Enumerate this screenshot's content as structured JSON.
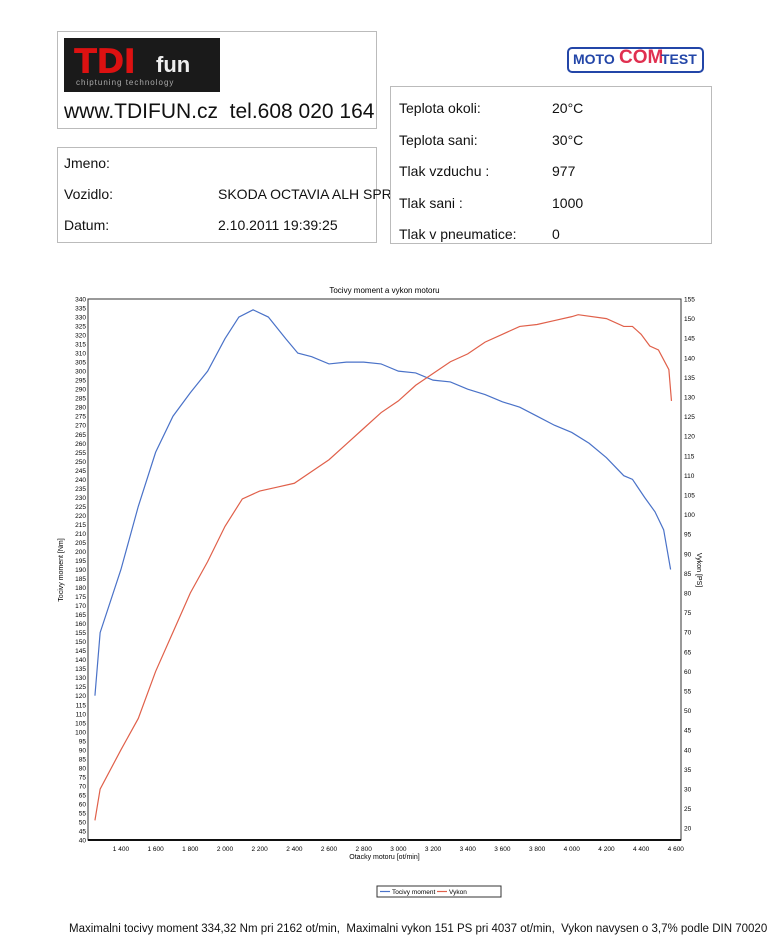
{
  "header": {
    "logo_text": "TDIfun",
    "logo_sub": "chiptuning technology",
    "contact": "www.TDIFUN.cz  tel.608 020 164",
    "moto_logo": [
      "MOTO",
      "COM",
      "TEST"
    ]
  },
  "info": {
    "jmeno_label": "Jmeno:",
    "jmeno_value": "",
    "vozidlo_label": "Vozidlo:",
    "vozidlo_value": "SKODA OCTAVIA ALH SPRIN",
    "datum_label": "Datum:",
    "datum_value": "2.10.2011 19:39:25"
  },
  "conditions": [
    {
      "label": "Teplota okoli:",
      "value": "20°C"
    },
    {
      "label": "Teplota sani:",
      "value": "30°C"
    },
    {
      "label": "Tlak vzduchu :",
      "value": "977"
    },
    {
      "label": "Tlak sani :",
      "value": "1000"
    },
    {
      "label": "Tlak v pneumatice:",
      "value": "0"
    }
  ],
  "chart_data": {
    "type": "line",
    "title": "Tocivy moment a vykon motoru",
    "xlabel": "Otacky motoru [ot/min]",
    "ylabel": "Tocivy moment [Nm]",
    "y2label": "Vykon [PS]",
    "xlim": [
      1210,
      4630
    ],
    "ylim": [
      40,
      340
    ],
    "y2lim": [
      17,
      155
    ],
    "xticks": [
      1400,
      1600,
      1800,
      2000,
      2200,
      2400,
      2600,
      2800,
      3000,
      3200,
      3400,
      3600,
      3800,
      4000,
      4200,
      4400,
      4600
    ],
    "xtick_labels": [
      "1 400",
      "1 600",
      "1 800",
      "2 000",
      "2 200",
      "2 400",
      "2 600",
      "2 800",
      "3 000",
      "3 200",
      "3 400",
      "3 600",
      "3 800",
      "4 000",
      "4 200",
      "4 400",
      "4 600"
    ],
    "legend": "bottom",
    "grid": false,
    "series": [
      {
        "name": "Tocivy moment",
        "axis": "left",
        "color": "#4a72c8",
        "x": [
          1250,
          1280,
          1400,
          1500,
          1600,
          1700,
          1800,
          1900,
          2000,
          2080,
          2162,
          2250,
          2350,
          2420,
          2500,
          2600,
          2700,
          2800,
          2900,
          3000,
          3100,
          3200,
          3300,
          3400,
          3500,
          3600,
          3700,
          3800,
          3900,
          4000,
          4100,
          4200,
          4300,
          4350,
          4420,
          4480,
          4530,
          4570
        ],
        "y": [
          120,
          155,
          190,
          225,
          255,
          275,
          288,
          300,
          318,
          330,
          334,
          330,
          318,
          310,
          308,
          304,
          305,
          305,
          304,
          300,
          299,
          295,
          294,
          290,
          287,
          283,
          280,
          275,
          270,
          266,
          260,
          252,
          242,
          240,
          230,
          222,
          212,
          190
        ]
      },
      {
        "name": "Vykon",
        "axis": "right",
        "color": "#e0604a",
        "x": [
          1250,
          1280,
          1400,
          1500,
          1600,
          1700,
          1800,
          1900,
          2000,
          2100,
          2200,
          2300,
          2400,
          2500,
          2600,
          2700,
          2800,
          2900,
          3000,
          3100,
          3200,
          3300,
          3400,
          3500,
          3600,
          3700,
          3800,
          3900,
          4000,
          4037,
          4200,
          4300,
          4350,
          4400,
          4450,
          4500,
          4560,
          4575
        ],
        "y": [
          22,
          30,
          40,
          48,
          60,
          70,
          80,
          88,
          97,
          104,
          106,
          107,
          108,
          111,
          114,
          118,
          122,
          126,
          129,
          133,
          136,
          139,
          141,
          144,
          146,
          148,
          148.5,
          149.5,
          150.5,
          151,
          150,
          148,
          148,
          146,
          143,
          142,
          137,
          129
        ]
      }
    ]
  },
  "footer": "Maximalni tocivy moment 334,32 Nm pri 2162 ot/min,  Maximalni vykon 151 PS pri 4037 ot/min,  Vykon navysen o 3,7% podle DIN 70020"
}
